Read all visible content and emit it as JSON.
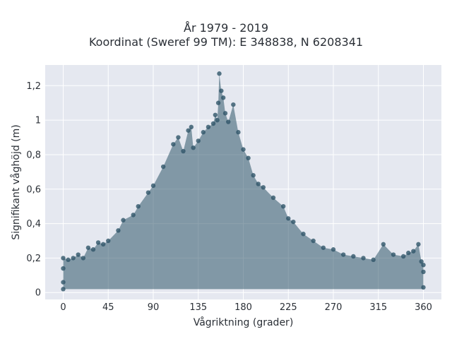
{
  "chart_data": {
    "type": "scatter",
    "title": "År 1979 - 2019",
    "subtitle": "Koordinat (Sweref 99 TM): E 348838, N 6208341",
    "xlabel": "Vågriktning (grader)",
    "ylabel": "Signifikant våghöjd (m)",
    "xlim": [
      -18,
      378
    ],
    "ylim": [
      -0.04,
      1.32
    ],
    "x_ticks": [
      0,
      45,
      90,
      135,
      180,
      225,
      270,
      315,
      360
    ],
    "x_tick_labels": [
      "0",
      "45",
      "90",
      "135",
      "180",
      "225",
      "270",
      "315",
      "360"
    ],
    "y_ticks": [
      0,
      0.2,
      0.4,
      0.6,
      0.8,
      1,
      1.2
    ],
    "y_tick_labels": [
      "0",
      "0,2",
      "0,4",
      "0,6",
      "0,8",
      "1",
      "1,2"
    ],
    "grid": true,
    "legend": "none",
    "marker_color": "#2f5569",
    "plot_background": "#e5e8f0",
    "grid_color": "#ffffff",
    "series": [
      {
        "x": [
          0,
          0,
          0,
          0,
          5,
          10,
          15,
          20,
          25,
          30,
          35,
          40,
          45,
          55,
          60,
          70,
          75,
          85,
          90,
          100,
          110,
          115,
          120,
          125,
          128,
          130,
          135,
          140,
          145,
          150,
          152,
          154,
          155,
          156,
          158,
          160,
          162,
          165,
          170,
          175,
          180,
          185,
          190,
          195,
          200,
          210,
          220,
          225,
          230,
          240,
          250,
          260,
          270,
          280,
          290,
          300,
          310,
          320,
          330,
          340,
          345,
          350,
          355,
          358,
          360,
          360,
          360
        ],
        "y": [
          0.02,
          0.06,
          0.14,
          0.2,
          0.19,
          0.2,
          0.22,
          0.2,
          0.26,
          0.25,
          0.29,
          0.28,
          0.3,
          0.36,
          0.42,
          0.45,
          0.5,
          0.58,
          0.62,
          0.73,
          0.86,
          0.9,
          0.82,
          0.94,
          0.96,
          0.84,
          0.88,
          0.93,
          0.96,
          0.98,
          1.03,
          1.0,
          1.1,
          1.27,
          1.17,
          1.13,
          1.04,
          0.99,
          1.09,
          0.93,
          0.83,
          0.78,
          0.68,
          0.63,
          0.61,
          0.55,
          0.5,
          0.43,
          0.41,
          0.34,
          0.3,
          0.26,
          0.25,
          0.22,
          0.21,
          0.2,
          0.19,
          0.28,
          0.22,
          0.21,
          0.23,
          0.24,
          0.28,
          0.18,
          0.16,
          0.12,
          0.03
        ]
      }
    ]
  }
}
